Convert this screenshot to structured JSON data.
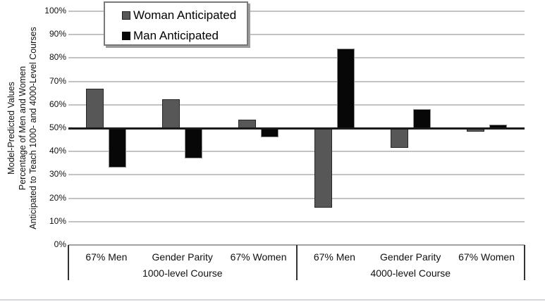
{
  "chart_data": {
    "type": "bar",
    "title": "",
    "ylabel_lines": [
      "Model-Predicted Values",
      "Percentage of Men and Women",
      "Anticipated to Teach 1000- and 4000-Level Courses"
    ],
    "y_ticks": [
      "0%",
      "10%",
      "20%",
      "30%",
      "40%",
      "50%",
      "60%",
      "70%",
      "80%",
      "90%",
      "100%"
    ],
    "ylim": [
      0,
      100
    ],
    "baseline_value": 50,
    "grid": true,
    "legend_position": "top-left-inside",
    "legend": [
      {
        "name": "Woman Anticipated",
        "key": "woman",
        "color": "#575757"
      },
      {
        "name": "Man Anticipated",
        "key": "man",
        "color": "#070707"
      }
    ],
    "groups": [
      {
        "label": "1000-level Course",
        "categories": [
          "67% Men",
          "Gender Parity",
          "67% Women"
        ]
      },
      {
        "label": "4000-level Course",
        "categories": [
          "67% Men",
          "Gender Parity",
          "67% Women"
        ]
      }
    ],
    "series": [
      {
        "name": "Woman Anticipated",
        "key": "woman",
        "values": [
          67,
          62.5,
          53.5,
          16,
          41.5,
          48.5
        ]
      },
      {
        "name": "Man Anticipated",
        "key": "man",
        "values": [
          33,
          37,
          46,
          84,
          58,
          51.5
        ]
      }
    ]
  }
}
